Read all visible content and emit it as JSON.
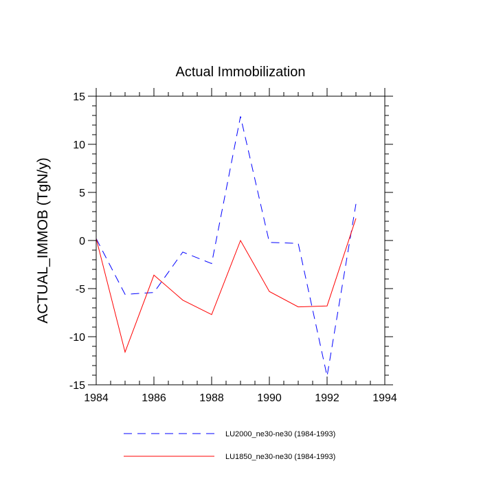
{
  "chart_data": {
    "type": "line",
    "title": "Actual Immobilization",
    "xlabel": "",
    "ylabel": "ACTUAL_IMMOB  (TgN/y)",
    "xlim": [
      1984,
      1994
    ],
    "ylim": [
      -15,
      15
    ],
    "xticks": [
      1984,
      1986,
      1988,
      1990,
      1992,
      1994
    ],
    "yticks": [
      15,
      10,
      5,
      0,
      -5,
      -10,
      -15
    ],
    "x": [
      1984,
      1985,
      1986,
      1987,
      1988,
      1989,
      1990,
      1991,
      1992,
      1993
    ],
    "series": [
      {
        "name": "LU2000_ne30-ne30 (1984-1993)",
        "color": "#0000ff",
        "style": "dashed",
        "values": [
          0.2,
          -5.6,
          -5.4,
          -1.2,
          -2.4,
          12.9,
          -0.2,
          -0.3,
          -14.1,
          3.8
        ]
      },
      {
        "name": "LU1850_ne30-ne30 (1984-1993)",
        "color": "#ff0000",
        "style": "solid",
        "values": [
          0.2,
          -11.6,
          -3.6,
          -6.2,
          -7.7,
          0.0,
          -5.3,
          -6.9,
          -6.8,
          2.3
        ]
      }
    ],
    "legend_position": "bottom"
  }
}
